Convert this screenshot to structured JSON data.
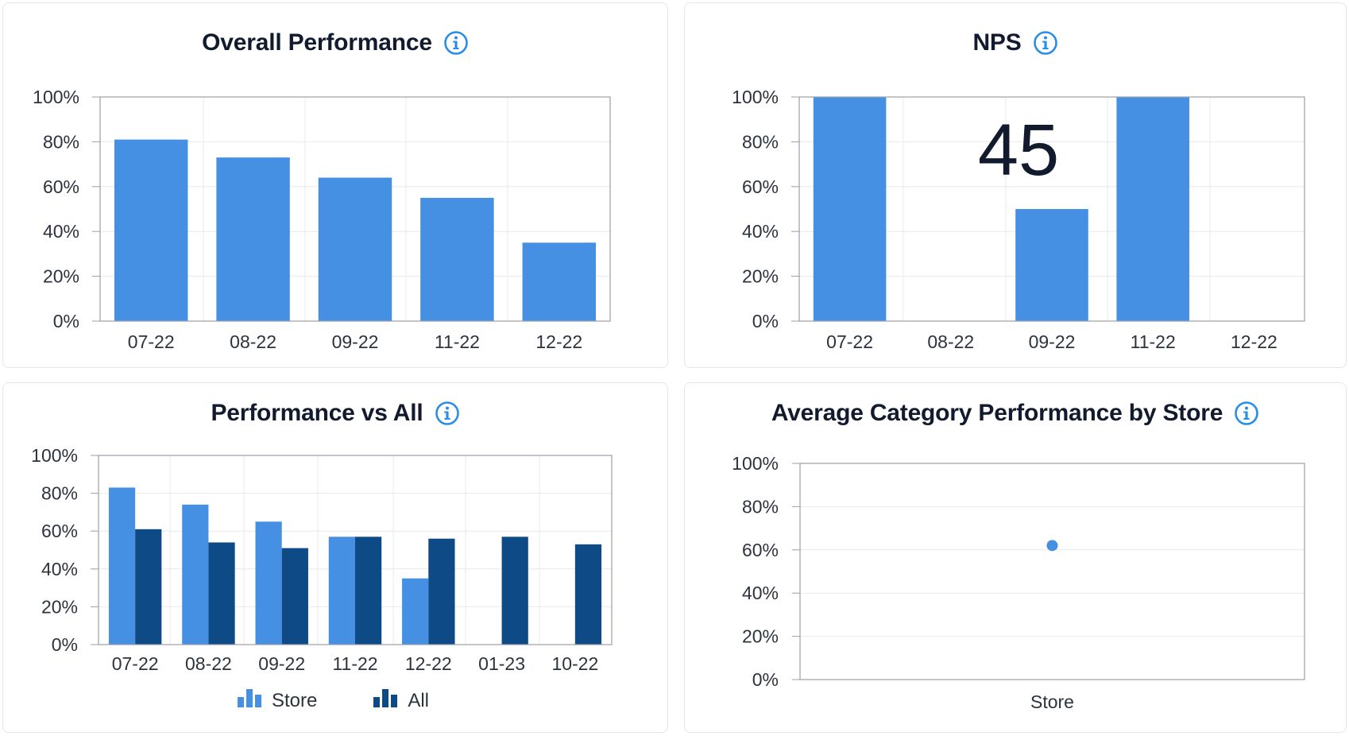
{
  "colors": {
    "store": "#4690e4",
    "all": "#0e4a85",
    "grid": "#e6e9ee",
    "axis": "#9aa0a8",
    "info": "#2a8ee6"
  },
  "info_icon_name": "info-icon",
  "chart_data": [
    {
      "id": "overall-performance",
      "type": "bar",
      "title": "Overall Performance",
      "categories": [
        "07-22",
        "08-22",
        "09-22",
        "11-22",
        "12-22"
      ],
      "series": [
        {
          "values": [
            81,
            73,
            64,
            55,
            35
          ]
        }
      ],
      "ylim": [
        0,
        100
      ],
      "yticks": [
        "0%",
        "20%",
        "40%",
        "60%",
        "80%",
        "100%"
      ],
      "xlabel": "",
      "ylabel": "",
      "grid": true
    },
    {
      "id": "nps",
      "type": "bar",
      "title": "NPS",
      "score": "45",
      "categories": [
        "07-22",
        "08-22",
        "09-22",
        "11-22",
        "12-22"
      ],
      "series": [
        {
          "values": [
            100,
            0,
            50,
            100,
            0
          ]
        }
      ],
      "ylim": [
        0,
        100
      ],
      "yticks": [
        "0%",
        "20%",
        "40%",
        "60%",
        "80%",
        "100%"
      ],
      "xlabel": "",
      "ylabel": "",
      "grid": true
    },
    {
      "id": "performance-vs-all",
      "type": "bar",
      "title": "Performance vs All",
      "categories": [
        "07-22",
        "08-22",
        "09-22",
        "11-22",
        "12-22",
        "01-23",
        "10-22"
      ],
      "series": [
        {
          "name": "Store",
          "values": [
            83,
            74,
            65,
            57,
            35,
            null,
            null
          ]
        },
        {
          "name": "All",
          "values": [
            61,
            54,
            51,
            57,
            56,
            57,
            53
          ]
        }
      ],
      "ylim": [
        0,
        100
      ],
      "yticks": [
        "0%",
        "20%",
        "40%",
        "60%",
        "80%",
        "100%"
      ],
      "xlabel": "",
      "ylabel": "",
      "legend": "bottom",
      "grid": true
    },
    {
      "id": "average-category-performance",
      "type": "scatter",
      "title": "Average Category Performance by Store",
      "categories": [
        "Store"
      ],
      "series": [
        {
          "values": [
            62
          ]
        }
      ],
      "ylim": [
        0,
        100
      ],
      "yticks": [
        "0%",
        "20%",
        "40%",
        "60%",
        "80%",
        "100%"
      ],
      "xlabel": "",
      "ylabel": "",
      "grid": true
    }
  ]
}
